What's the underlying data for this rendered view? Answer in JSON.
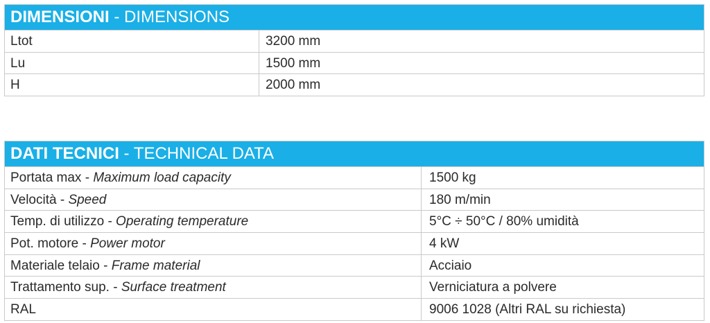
{
  "dimensions": {
    "title_it": "DIMENSIONI",
    "title_sep": " - ",
    "title_en": "DIMENSIONS",
    "rows": [
      {
        "label": "Ltot",
        "value": "3200 mm"
      },
      {
        "label": "Lu",
        "value": "1500 mm"
      },
      {
        "label": "H",
        "value": "2000 mm"
      }
    ]
  },
  "technical": {
    "title_it": "DATI TECNICI",
    "title_sep": " - ",
    "title_en": "TECHNICAL DATA",
    "rows": [
      {
        "label_it": "Portata max - ",
        "label_en": "Maximum load capacity",
        "value": "1500 kg"
      },
      {
        "label_it": "Velocità - ",
        "label_en": "Speed",
        "value": "180 m/min"
      },
      {
        "label_it": "Temp. di utilizzo - ",
        "label_en": "Operating temperature",
        "value": "5°C ÷ 50°C / 80% umidità"
      },
      {
        "label_it": "Pot. motore - ",
        "label_en": "Power motor",
        "value": "4 kW"
      },
      {
        "label_it": "Materiale telaio - ",
        "label_en": "Frame material",
        "value": "Acciaio"
      },
      {
        "label_it": "Trattamento sup. - ",
        "label_en": "Surface treatment",
        "value": "Verniciatura a polvere"
      },
      {
        "label_it": "RAL",
        "label_en": "",
        "value": "9006 1028 (Altri RAL su richiesta)"
      }
    ]
  },
  "colors": {
    "header_bg": "#1aafe6",
    "border": "#c9c9c9"
  }
}
